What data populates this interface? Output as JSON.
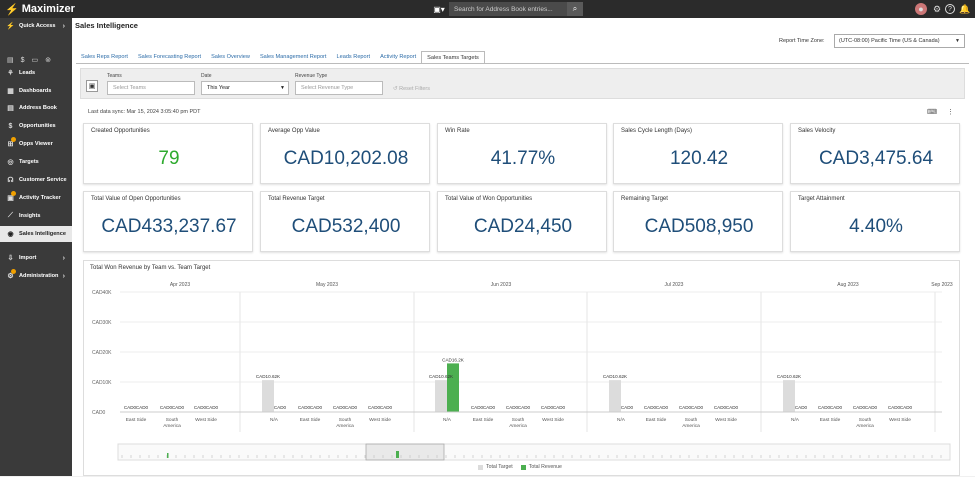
{
  "app": {
    "name": "Maximizer"
  },
  "topbar": {
    "search_placeholder": "Search for Address Book entries..."
  },
  "sidebar": {
    "quick_access": "Quick Access",
    "items": [
      {
        "label": "Leads",
        "icon": "leads-icon"
      },
      {
        "label": "Dashboards",
        "icon": "dashboard-icon"
      },
      {
        "label": "Address Book",
        "icon": "address-book-icon"
      },
      {
        "label": "Opportunities",
        "icon": "dollar-icon"
      },
      {
        "label": "Opps Viewer",
        "icon": "opps-viewer-icon"
      },
      {
        "label": "Targets",
        "icon": "target-icon"
      },
      {
        "label": "Customer Service",
        "icon": "headset-icon"
      },
      {
        "label": "Activity Tracker",
        "icon": "activity-icon"
      },
      {
        "label": "Insights",
        "icon": "chart-icon"
      },
      {
        "label": "Sales Intelligence",
        "icon": "intelligence-icon"
      },
      {
        "label": "Import",
        "icon": "import-icon"
      },
      {
        "label": "Administration",
        "icon": "gear-icon"
      }
    ]
  },
  "page": {
    "title": "Sales Intelligence",
    "tz_label": "Report Time Zone:",
    "tz_value": "(UTC-08:00) Pacific Time (US & Canada)",
    "tabs": [
      "Sales Reps Report",
      "Sales Forecasting Report",
      "Sales Overview",
      "Sales Management Report",
      "Leads Report",
      "Activity Report",
      "Sales Teams Targets"
    ],
    "active_tab": 6
  },
  "filters": {
    "teams_label": "Teams",
    "teams_placeholder": "Select Teams",
    "date_label": "Date",
    "date_value": "This Year",
    "revenue_label": "Revenue Type",
    "revenue_placeholder": "Select Revenue Type",
    "reset": "Reset Filters"
  },
  "sync": "Last data sync: Mar 15, 2024 3:05:40 pm PDT",
  "cards": [
    {
      "label": "Created Opportunities",
      "value": "79"
    },
    {
      "label": "Average Opp Value",
      "value": "CAD10,202.08"
    },
    {
      "label": "Win Rate",
      "value": "41.77%"
    },
    {
      "label": "Sales Cycle Length (Days)",
      "value": "120.42"
    },
    {
      "label": "Sales Velocity",
      "value": "CAD3,475.64"
    },
    {
      "label": "Total Value of Open Opportunities",
      "value": "CAD433,237.67"
    },
    {
      "label": "Total Revenue Target",
      "value": "CAD532,400"
    },
    {
      "label": "Total Value of Won Opportunities",
      "value": "CAD24,450"
    },
    {
      "label": "Remaining Target",
      "value": "CAD508,950"
    },
    {
      "label": "Target Attainment",
      "value": "4.40%"
    }
  ],
  "colors": {
    "target": "#dcdcdc",
    "revenue": "#4caf50",
    "accent": "#1f4e79"
  },
  "chart_data": {
    "type": "bar",
    "title": "Total Won Revenue by Team vs. Team Target",
    "months": [
      "Apr 2023",
      "May 2023",
      "Jun 2023",
      "Jul 2023",
      "Aug 2023",
      "Sep 2023"
    ],
    "ylim": [
      0,
      40000
    ],
    "yticks": [
      "CAD0",
      "CAD10K",
      "CAD20K",
      "CAD30K",
      "CAD40K"
    ],
    "categories": [
      "East Side",
      "South America",
      "West Side",
      "N/A",
      "East Side",
      "South America",
      "West Side",
      "N/A",
      "East Side",
      "South America",
      "West Side",
      "N/A",
      "East Side",
      "South America",
      "West Side",
      "N/A",
      "East Side",
      "South America",
      "West Side"
    ],
    "series": [
      {
        "name": "Total Target",
        "values": [
          0,
          0,
          0,
          10620,
          0,
          0,
          0,
          10620,
          0,
          0,
          0,
          10620,
          0,
          0,
          0,
          10620,
          0,
          0,
          0
        ]
      },
      {
        "name": "Total Revenue",
        "values": [
          0,
          0,
          0,
          0,
          0,
          0,
          0,
          16200,
          0,
          0,
          0,
          0,
          0,
          0,
          0,
          0,
          0,
          0,
          0
        ]
      }
    ],
    "data_labels": [
      [
        "CAD0",
        "CAD0"
      ],
      [
        "CAD0",
        "CAD0"
      ],
      [
        "CAD0",
        "CAD0"
      ],
      [
        "CAD10.62K",
        "CAD0"
      ],
      [
        "CAD0",
        "CAD0"
      ],
      [
        "CAD0",
        "CAD0"
      ],
      [
        "CAD0",
        "CAD0"
      ],
      [
        "CAD10.62K",
        "CAD16.2K"
      ],
      [
        "CAD0",
        "CAD0"
      ],
      [
        "CAD0",
        "CAD0"
      ],
      [
        "CAD0",
        "CAD0"
      ],
      [
        "CAD10.62K",
        "CAD0"
      ],
      [
        "CAD0",
        "CAD0"
      ],
      [
        "CAD0",
        "CAD0"
      ],
      [
        "CAD0",
        "CAD0"
      ],
      [
        "CAD10.62K",
        "CAD0"
      ],
      [
        "CAD0",
        "CAD0"
      ],
      [
        "CAD0",
        "CAD0"
      ],
      [
        "CAD0",
        "CAD0"
      ]
    ],
    "legend": [
      "Total Target",
      "Total Revenue"
    ],
    "legend_position": "bottom"
  }
}
